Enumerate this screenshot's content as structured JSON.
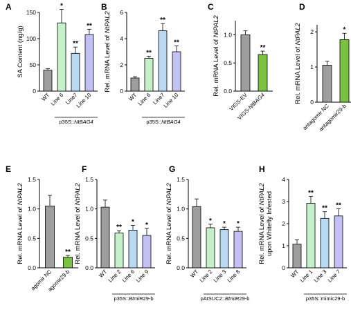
{
  "chart_data": [
    {
      "panel": "A",
      "type": "bar",
      "ylabel": "SA Content (ng/g)",
      "ylim": [
        0,
        150
      ],
      "yticks": [
        "0",
        "50",
        "100",
        "150"
      ],
      "categories": [
        "WT",
        "Line 6",
        "Line7",
        "Line 10"
      ],
      "values": [
        40,
        130,
        72,
        108
      ],
      "errors": [
        3,
        26,
        12,
        10
      ],
      "significance": [
        "",
        "*",
        "**",
        "**"
      ],
      "colors": [
        "#9e9e9e",
        "#c6f0c9",
        "#b9d8f2",
        "#c3c1f3"
      ],
      "group_label": "p35S::NtBAG4"
    },
    {
      "panel": "B",
      "type": "bar",
      "ylabel": "Rel. mRNA Level of NtPAL2",
      "ylim": [
        0,
        6
      ],
      "yticks": [
        "0",
        "2",
        "4",
        "6"
      ],
      "categories": [
        "WT",
        "Line 6",
        "Line7",
        "Line 10"
      ],
      "values": [
        1.0,
        2.5,
        4.6,
        3.0
      ],
      "errors": [
        0.1,
        0.15,
        0.55,
        0.45
      ],
      "significance": [
        "",
        "**",
        "**",
        "**"
      ],
      "colors": [
        "#9e9e9e",
        "#c6f0c9",
        "#b9d8f2",
        "#c3c1f3"
      ],
      "group_label": "p35S::NtBAG4"
    },
    {
      "panel": "C",
      "type": "bar",
      "ylabel": "Rel. mRNA Level of NtPAL2",
      "ylim": [
        0,
        1.25
      ],
      "yticks": [
        "0.0",
        "0.5",
        "1.0"
      ],
      "categories": [
        "VIGS-EV",
        "VIGS-NtBAG4"
      ],
      "values": [
        1.0,
        0.65
      ],
      "errors": [
        0.07,
        0.06
      ],
      "significance": [
        "",
        "**"
      ],
      "colors": [
        "#9e9e9e",
        "#7cc242"
      ],
      "group_label": ""
    },
    {
      "panel": "D",
      "type": "bar",
      "ylabel": "Rel. mRNA Level of NtPAL2",
      "ylim": [
        0,
        2.2
      ],
      "yticks": [
        "0",
        "1",
        "2"
      ],
      "categories": [
        "antagomir NC",
        "antagomir29-b"
      ],
      "values": [
        1.05,
        1.78
      ],
      "errors": [
        0.12,
        0.18
      ],
      "significance": [
        "",
        "*"
      ],
      "colors": [
        "#9e9e9e",
        "#7cc242"
      ],
      "group_label": ""
    },
    {
      "panel": "E",
      "type": "bar",
      "ylabel": "Rel. mRNA Level of NtPAL2",
      "ylim": [
        0,
        1.5
      ],
      "yticks": [
        "0.0",
        "0.5",
        "1.0",
        "1.5"
      ],
      "categories": [
        "agomir NC",
        "agomir29-b"
      ],
      "values": [
        1.05,
        0.18
      ],
      "errors": [
        0.18,
        0.03
      ],
      "significance": [
        "",
        "**"
      ],
      "colors": [
        "#9e9e9e",
        "#7cc242"
      ],
      "group_label": ""
    },
    {
      "panel": "F",
      "type": "bar",
      "ylabel": "Rel. mRNA Level of NtPAL2",
      "ylim": [
        0,
        1.5
      ],
      "yticks": [
        "0.0",
        "0.5",
        "1.0",
        "1.5"
      ],
      "categories": [
        "WT",
        "Line 2",
        "Line 6",
        "Line 9"
      ],
      "values": [
        1.03,
        0.59,
        0.64,
        0.55
      ],
      "errors": [
        0.12,
        0.04,
        0.08,
        0.12
      ],
      "significance": [
        "",
        "**",
        "*",
        "*"
      ],
      "colors": [
        "#9e9e9e",
        "#c6f0c9",
        "#b9d8f2",
        "#c3c1f3"
      ],
      "group_label": "p35S::BtmiR29-b"
    },
    {
      "panel": "G",
      "type": "bar",
      "ylabel": "Rel. mRNA Level of NtPAL2",
      "ylim": [
        0,
        1.5
      ],
      "yticks": [
        "0.0",
        "0.5",
        "1.0",
        "1.5"
      ],
      "categories": [
        "WT",
        "Line 2",
        "Line 3",
        "Line 8"
      ],
      "values": [
        1.04,
        0.68,
        0.65,
        0.62
      ],
      "errors": [
        0.13,
        0.06,
        0.04,
        0.07
      ],
      "significance": [
        "",
        "*",
        "*",
        "*"
      ],
      "colors": [
        "#9e9e9e",
        "#c6f0c9",
        "#b9d8f2",
        "#c3c1f3"
      ],
      "group_label": "pAtSUC2::BtmiR29-b"
    },
    {
      "panel": "H",
      "type": "bar",
      "ylabel": "Rel. mRNA Level of NtPAL2 upon Whitefly Infested",
      "ylim": [
        0,
        4
      ],
      "yticks": [
        "0",
        "1",
        "2",
        "3",
        "4"
      ],
      "categories": [
        "WT",
        "Line 1",
        "Line 3",
        "Line 7"
      ],
      "values": [
        1.07,
        2.92,
        2.24,
        2.35
      ],
      "errors": [
        0.2,
        0.32,
        0.3,
        0.32
      ],
      "significance": [
        "",
        "**",
        "**",
        "**"
      ],
      "colors": [
        "#9e9e9e",
        "#c6f0c9",
        "#b9d8f2",
        "#c3c1f3"
      ],
      "group_label": "p35S::mimic29-b"
    }
  ]
}
